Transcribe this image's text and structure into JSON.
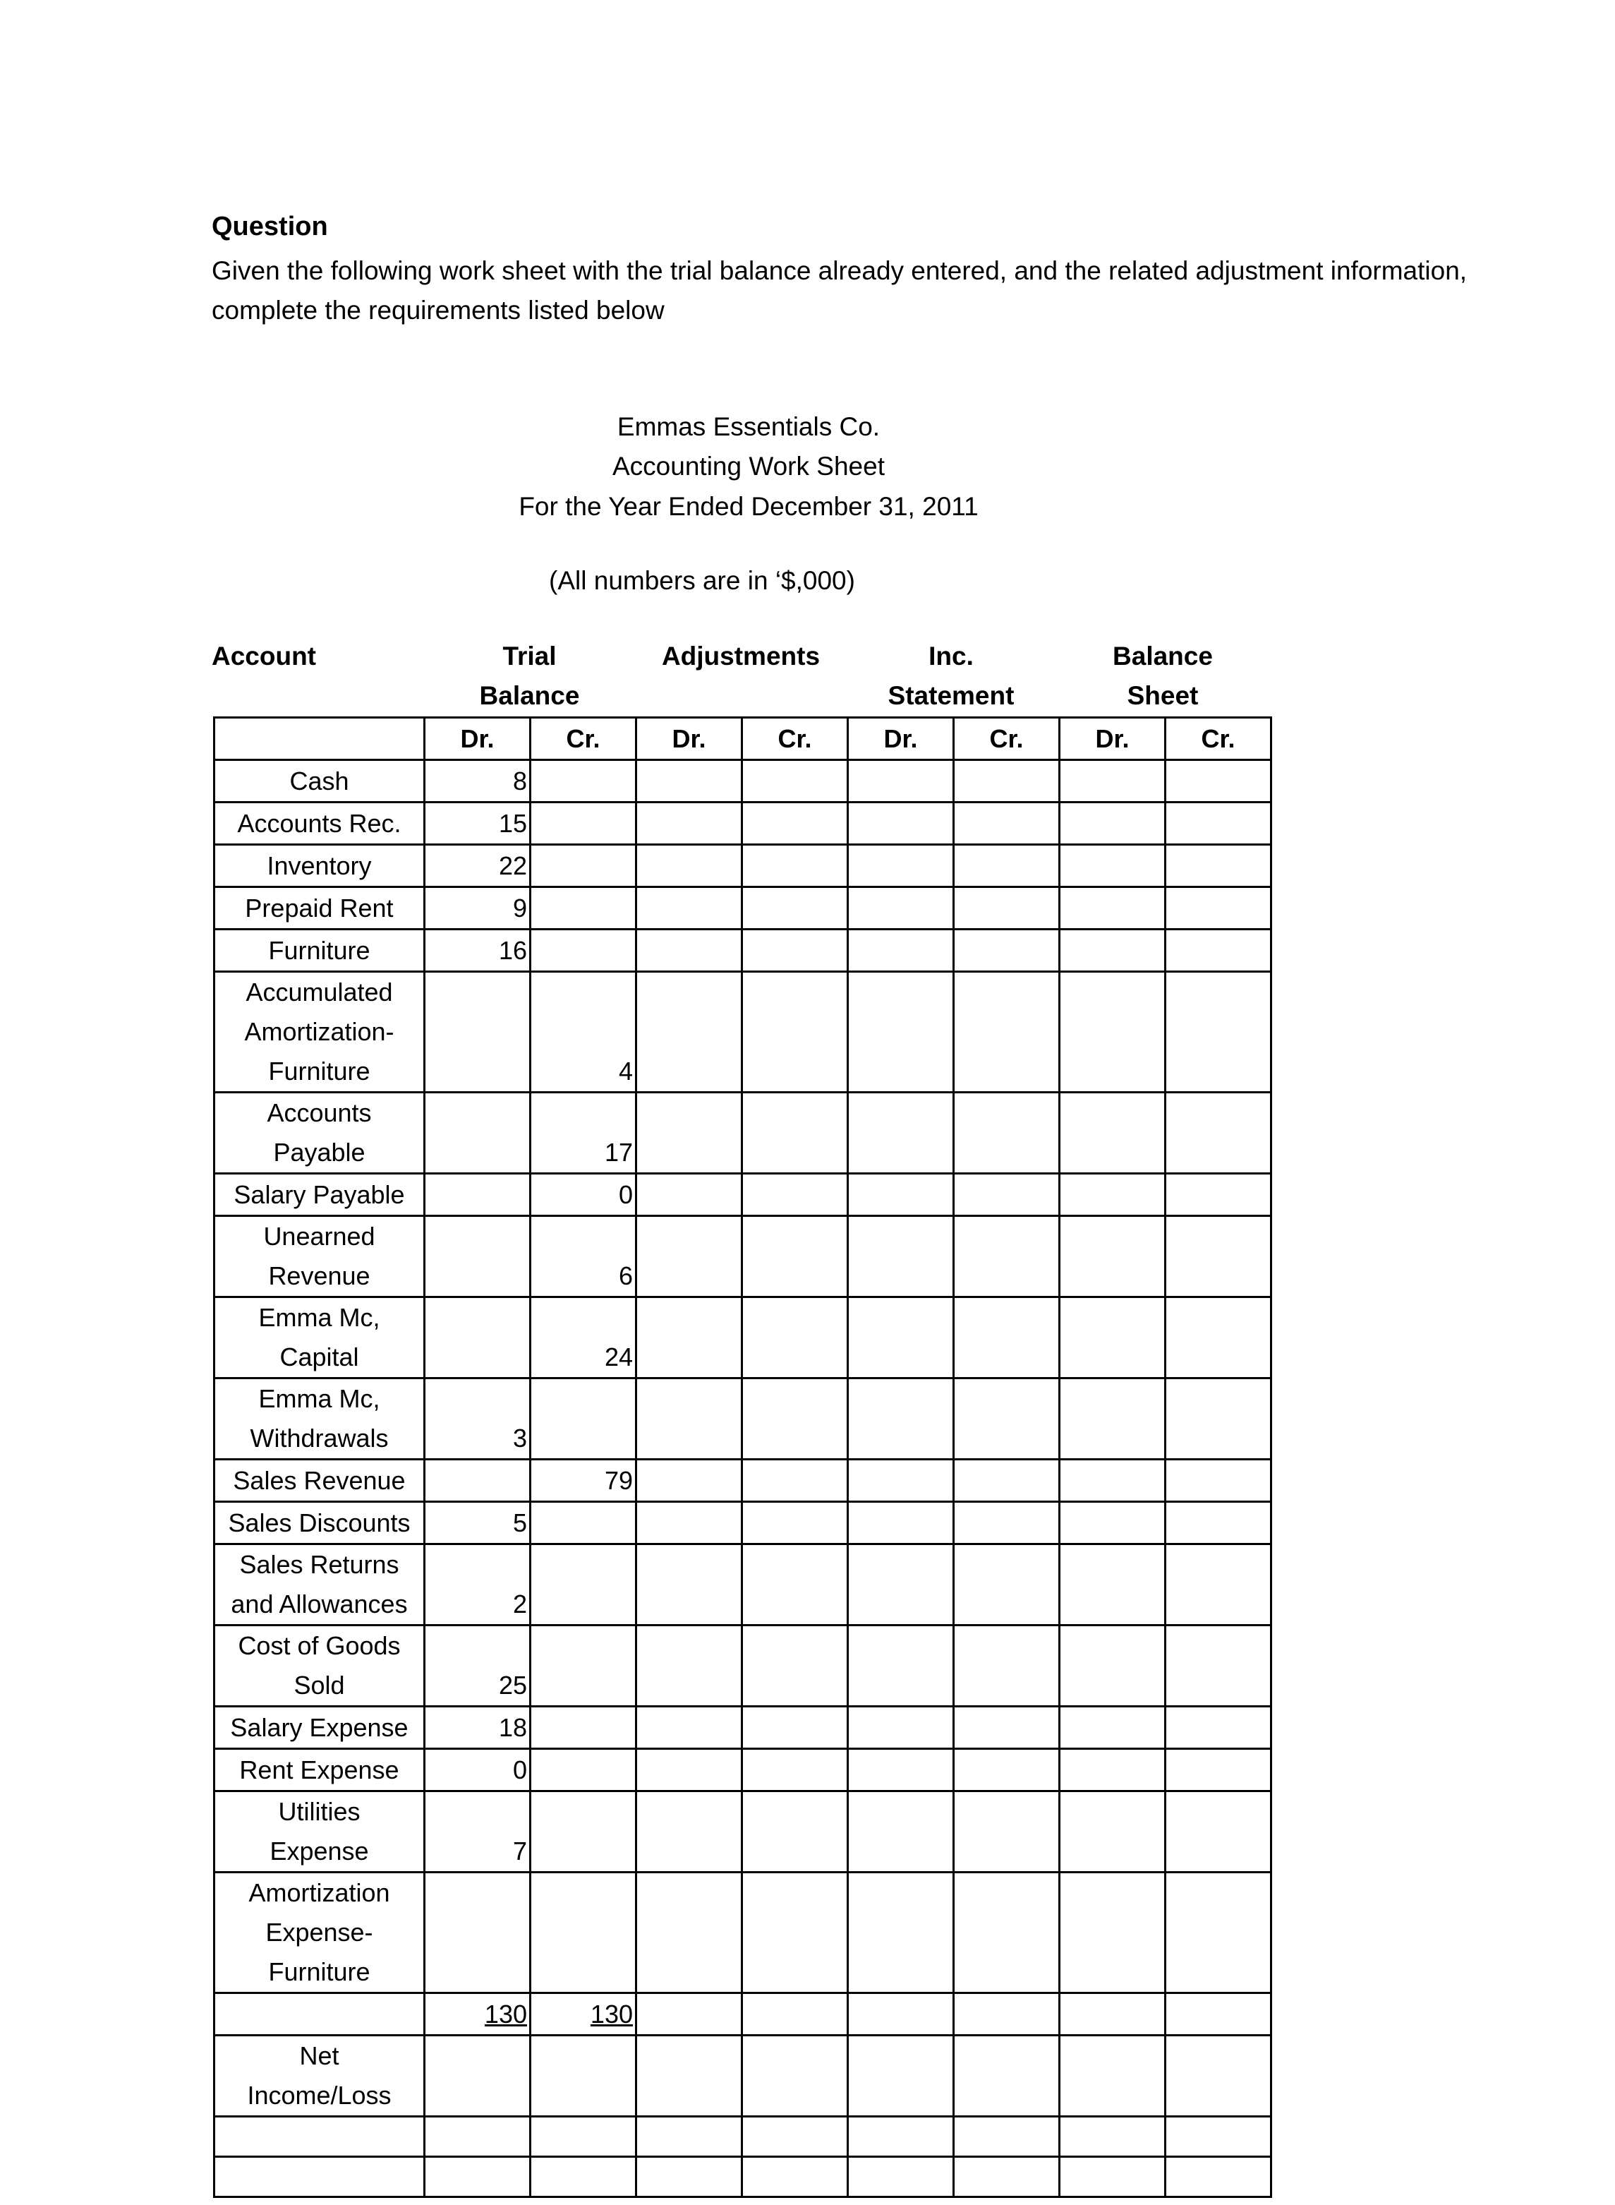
{
  "question": {
    "title": "Question",
    "text": "Given the following work sheet with the trial balance already entered, and the related adjustment information, complete the requirements listed below"
  },
  "header": {
    "company": "Emmas Essentials Co.",
    "title": "Accounting Work Sheet",
    "period": "For the Year Ended December 31, 2011",
    "units_note": "(All numbers are in ‘$,000)"
  },
  "columns": {
    "account": "Account",
    "trial_balance": "Trial\nBalance",
    "adjustments": "Adjustments",
    "income_statement": "Inc.\nStatement",
    "balance_sheet": "Balance\nSheet",
    "sub": [
      "Dr.",
      "Cr.",
      "Dr.",
      "Cr.",
      "Dr.",
      "Cr.",
      "Dr.",
      "Cr."
    ]
  },
  "rows": [
    {
      "account": "Cash",
      "tb_dr": "8",
      "tb_cr": ""
    },
    {
      "account": "Accounts Rec.",
      "tb_dr": "15",
      "tb_cr": ""
    },
    {
      "account": "Inventory",
      "tb_dr": "22",
      "tb_cr": ""
    },
    {
      "account": "Prepaid Rent",
      "tb_dr": "9",
      "tb_cr": ""
    },
    {
      "account": "Furniture",
      "tb_dr": "16",
      "tb_cr": ""
    },
    {
      "account": "Accumulated\nAmortization-\nFurniture",
      "tb_dr": "",
      "tb_cr": "4"
    },
    {
      "account": "Accounts\nPayable",
      "tb_dr": "",
      "tb_cr": "17"
    },
    {
      "account": "Salary Payable",
      "tb_dr": "",
      "tb_cr": "0"
    },
    {
      "account": "Unearned\nRevenue",
      "tb_dr": "",
      "tb_cr": "6"
    },
    {
      "account": "Emma Mc,\nCapital",
      "tb_dr": "",
      "tb_cr": "24"
    },
    {
      "account": "Emma Mc,\nWithdrawals",
      "tb_dr": "3",
      "tb_cr": ""
    },
    {
      "account": "Sales Revenue",
      "tb_dr": "",
      "tb_cr": "79"
    },
    {
      "account": "Sales Discounts",
      "tb_dr": "5",
      "tb_cr": ""
    },
    {
      "account": "Sales Returns\nand Allowances",
      "tb_dr": "2",
      "tb_cr": ""
    },
    {
      "account": "Cost of Goods\nSold",
      "tb_dr": "25",
      "tb_cr": ""
    },
    {
      "account": "Salary Expense",
      "tb_dr": "18",
      "tb_cr": ""
    },
    {
      "account": "Rent Expense",
      "tb_dr": "0",
      "tb_cr": ""
    },
    {
      "account": "Utilities\nExpense",
      "tb_dr": "7",
      "tb_cr": ""
    },
    {
      "account": "Amortization\nExpense-\nFurniture",
      "tb_dr": "",
      "tb_cr": ""
    },
    {
      "account": "",
      "tb_dr": "130",
      "tb_cr": "130",
      "total": true
    },
    {
      "account": "Net\nIncome/Loss",
      "tb_dr": "",
      "tb_cr": ""
    },
    {
      "account": "",
      "tb_dr": "",
      "tb_cr": ""
    },
    {
      "account": "",
      "tb_dr": "",
      "tb_cr": ""
    }
  ]
}
